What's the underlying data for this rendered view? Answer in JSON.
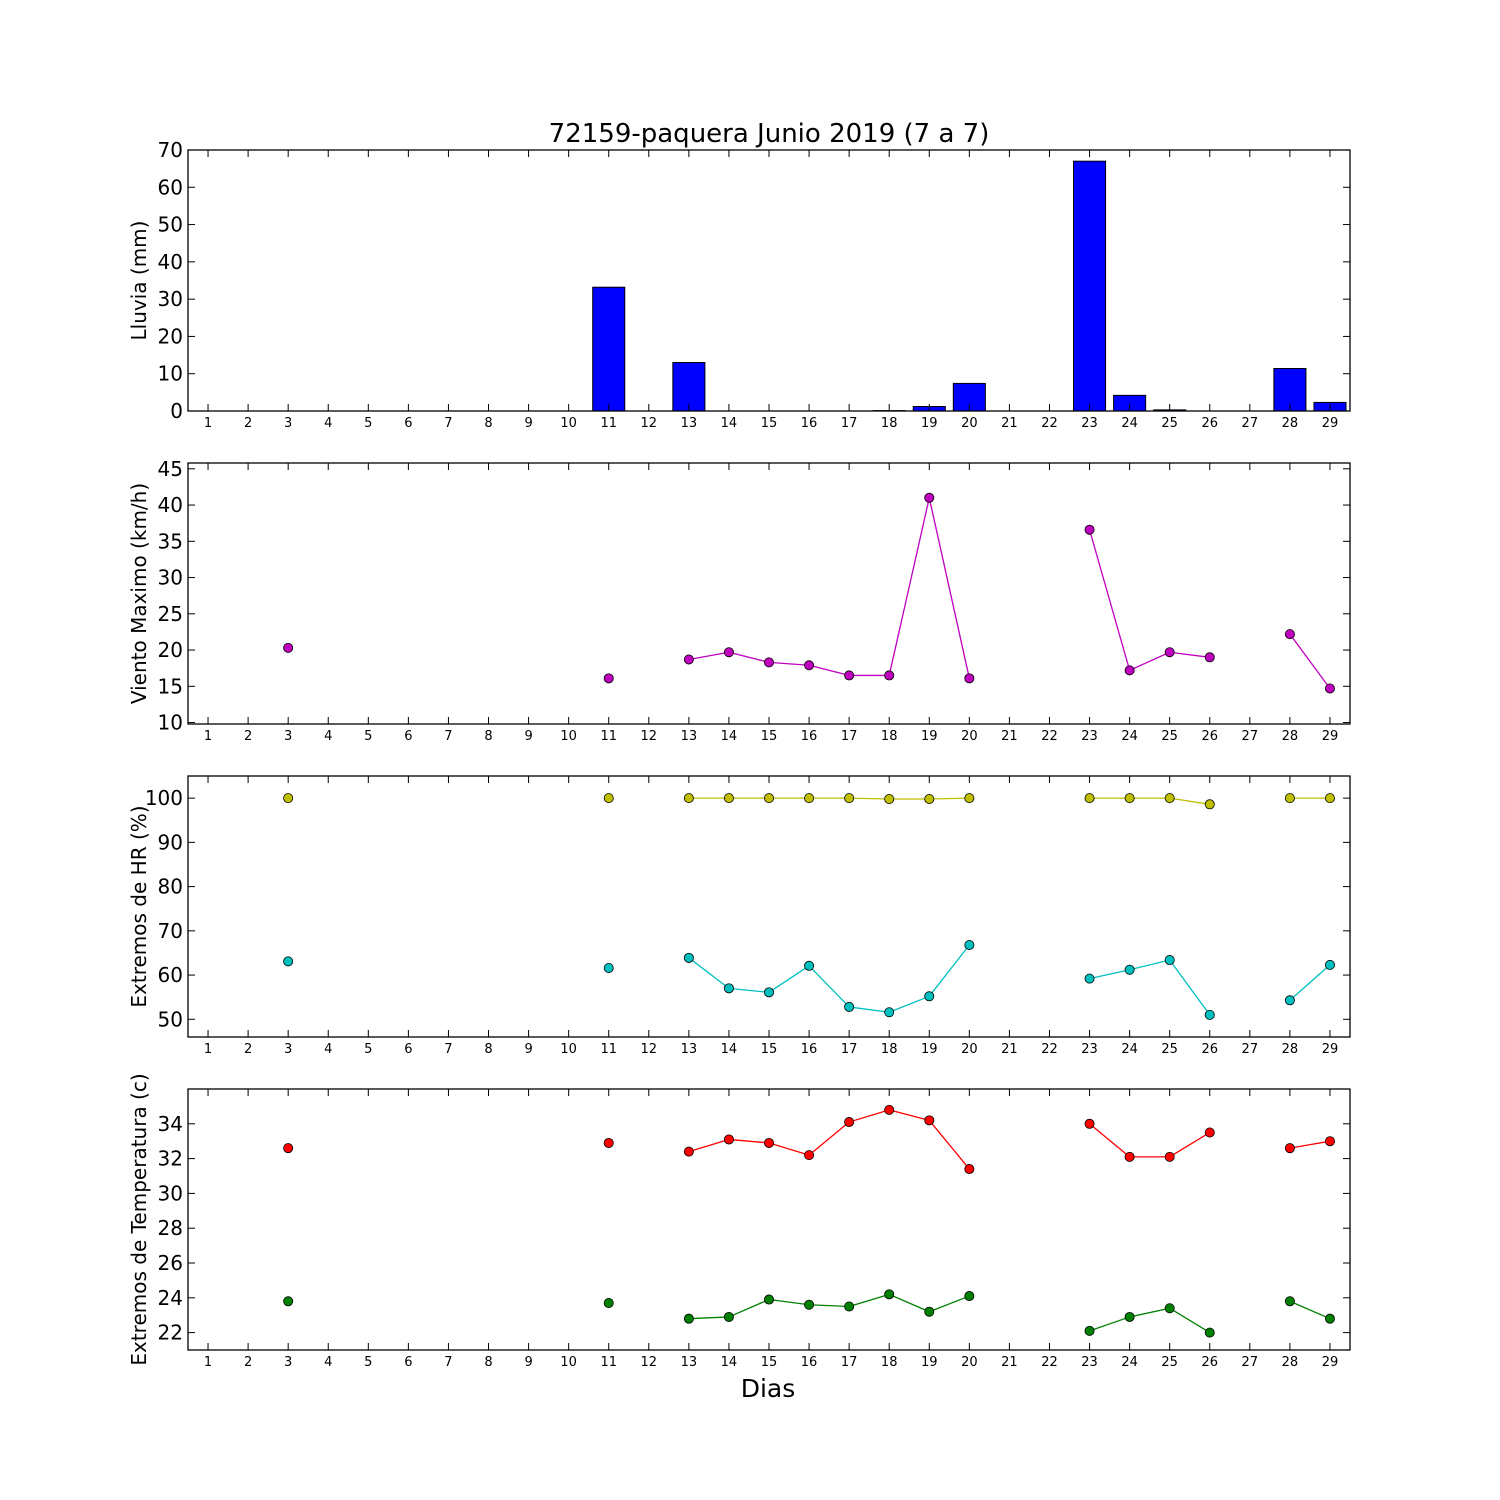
{
  "figure": {
    "title": "72159-paquera Junio 2019  (7 a 7)",
    "xlabel": "Dias"
  },
  "chart_data": [
    {
      "id": "lluvia",
      "type": "bar",
      "ylabel": "Lluvia (mm)",
      "xlim": [
        0.5,
        29.5
      ],
      "ylim": [
        0,
        70
      ],
      "yticks": [
        0,
        10,
        20,
        30,
        40,
        50,
        60,
        70
      ],
      "xticks": [
        1,
        2,
        3,
        4,
        5,
        6,
        7,
        8,
        9,
        10,
        11,
        12,
        13,
        14,
        15,
        16,
        17,
        18,
        19,
        20,
        21,
        22,
        23,
        24,
        25,
        26,
        27,
        28,
        29
      ],
      "grid": false,
      "series": [
        {
          "color": "#0000ff",
          "x": [
            3,
            11,
            13,
            14,
            15,
            16,
            17,
            18,
            19,
            20,
            23,
            24,
            25,
            26,
            28,
            29
          ],
          "values": [
            0.0,
            33.2,
            13.0,
            0.0,
            0.0,
            0.0,
            0.0,
            0.1,
            1.2,
            7.4,
            67.0,
            4.2,
            0.3,
            0.0,
            11.4,
            2.3
          ]
        }
      ]
    },
    {
      "id": "viento",
      "type": "line",
      "ylabel": "Viento Maximo (km/h)",
      "xlim": [
        0.5,
        29.5
      ],
      "ylim": [
        9.8,
        45.8
      ],
      "yticks": [
        10,
        15,
        20,
        25,
        30,
        35,
        40,
        45
      ],
      "xticks": [
        1,
        2,
        3,
        4,
        5,
        6,
        7,
        8,
        9,
        10,
        11,
        12,
        13,
        14,
        15,
        16,
        17,
        18,
        19,
        20,
        21,
        22,
        23,
        24,
        25,
        26,
        27,
        28,
        29
      ],
      "grid": false,
      "series": [
        {
          "color": "#bf00bf",
          "x": [
            3,
            11,
            13,
            14,
            15,
            16,
            17,
            18,
            19,
            20,
            23,
            24,
            25,
            26,
            28,
            29
          ],
          "values": [
            20.3,
            16.1,
            18.7,
            19.7,
            18.3,
            17.9,
            16.5,
            16.5,
            41.0,
            16.1,
            36.6,
            17.2,
            19.7,
            19.0,
            22.2,
            14.7
          ]
        }
      ]
    },
    {
      "id": "humedad",
      "type": "line",
      "ylabel": "Extremos de HR (%)",
      "xlim": [
        0.5,
        29.5
      ],
      "ylim": [
        46,
        105
      ],
      "yticks": [
        50,
        60,
        70,
        80,
        90,
        100
      ],
      "xticks": [
        1,
        2,
        3,
        4,
        5,
        6,
        7,
        8,
        9,
        10,
        11,
        12,
        13,
        14,
        15,
        16,
        17,
        18,
        19,
        20,
        21,
        22,
        23,
        24,
        25,
        26,
        27,
        28,
        29
      ],
      "grid": false,
      "series": [
        {
          "color": "#bfbf00",
          "x": [
            3,
            11,
            13,
            14,
            15,
            16,
            17,
            18,
            19,
            20,
            23,
            24,
            25,
            26,
            28,
            29
          ],
          "values": [
            100,
            100,
            100,
            100,
            100,
            100,
            100,
            99.8,
            99.8,
            100,
            100,
            100,
            100,
            98.6,
            100,
            100
          ]
        },
        {
          "color": "#00bfbf",
          "x": [
            3,
            11,
            13,
            14,
            15,
            16,
            17,
            18,
            19,
            20,
            23,
            24,
            25,
            26,
            28,
            29
          ],
          "values": [
            63.1,
            61.6,
            63.9,
            57.0,
            56.1,
            62.1,
            52.8,
            51.6,
            55.2,
            66.8,
            59.2,
            61.2,
            63.4,
            51.0,
            54.3,
            62.3
          ]
        }
      ]
    },
    {
      "id": "temperatura",
      "type": "line",
      "ylabel": "Extremos de Temperatura (c)",
      "xlim": [
        0.5,
        29.5
      ],
      "ylim": [
        21,
        36
      ],
      "yticks": [
        22,
        24,
        26,
        28,
        30,
        32,
        34
      ],
      "xticks": [
        1,
        2,
        3,
        4,
        5,
        6,
        7,
        8,
        9,
        10,
        11,
        12,
        13,
        14,
        15,
        16,
        17,
        18,
        19,
        20,
        21,
        22,
        23,
        24,
        25,
        26,
        27,
        28,
        29
      ],
      "grid": false,
      "series": [
        {
          "color": "#ff0000",
          "x": [
            3,
            11,
            13,
            14,
            15,
            16,
            17,
            18,
            19,
            20,
            23,
            24,
            25,
            26,
            28,
            29
          ],
          "values": [
            32.6,
            32.9,
            32.4,
            33.1,
            32.9,
            32.2,
            34.1,
            34.8,
            34.2,
            31.4,
            34.0,
            32.1,
            32.1,
            33.5,
            32.6,
            33.0
          ]
        },
        {
          "color": "#008000",
          "x": [
            3,
            11,
            13,
            14,
            15,
            16,
            17,
            18,
            19,
            20,
            23,
            24,
            25,
            26,
            28,
            29
          ],
          "values": [
            23.8,
            23.7,
            22.8,
            22.9,
            23.9,
            23.6,
            23.5,
            24.2,
            23.2,
            24.1,
            22.1,
            22.9,
            23.4,
            22.0,
            23.8,
            22.8
          ]
        }
      ]
    }
  ]
}
